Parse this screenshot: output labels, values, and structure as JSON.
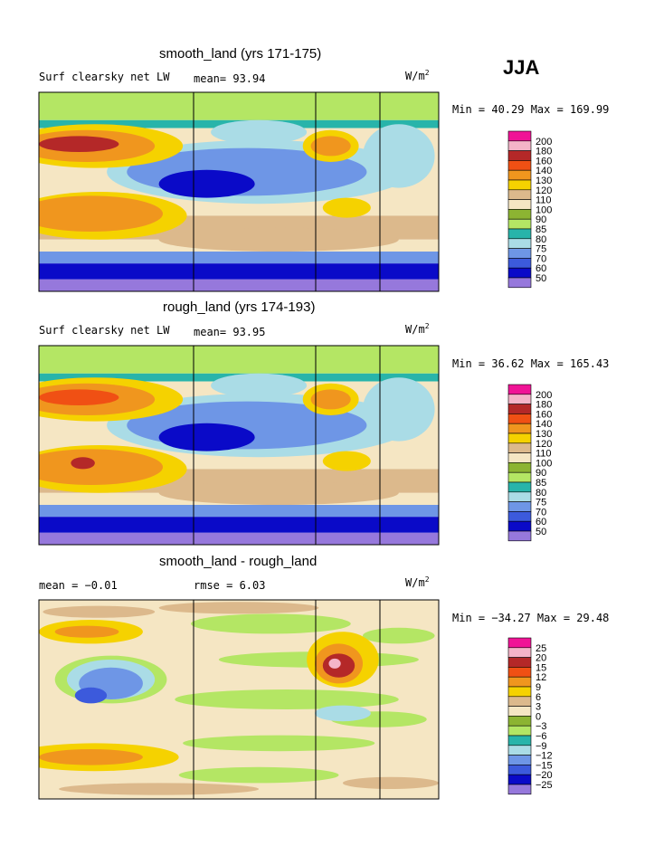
{
  "season": "JJA",
  "chart_data": [
    {
      "type": "heatmap",
      "title": "smooth_land (yrs 171-175)",
      "left_label": "Surf clearsky net LW",
      "mid_label": "mean=  93.94",
      "unit": "W/m",
      "unit_exp": "2",
      "range_text": "Min =  40.29 Max = 169.99",
      "min": 40.29,
      "max": 169.99,
      "mean": 93.94,
      "colorbar_levels": [
        "200",
        "180",
        "160",
        "140",
        "130",
        "120",
        "110",
        "100",
        "90",
        "85",
        "80",
        "75",
        "70",
        "60",
        "50"
      ]
    },
    {
      "type": "heatmap",
      "title": "rough_land (yrs 174-193)",
      "left_label": "Surf clearsky net LW",
      "mid_label": "mean=  93.95",
      "unit": "W/m",
      "unit_exp": "2",
      "range_text": "Min =  36.62 Max = 165.43",
      "min": 36.62,
      "max": 165.43,
      "mean": 93.95,
      "colorbar_levels": [
        "200",
        "180",
        "160",
        "140",
        "130",
        "120",
        "110",
        "100",
        "90",
        "85",
        "80",
        "75",
        "70",
        "60",
        "50"
      ]
    },
    {
      "type": "heatmap",
      "title": "smooth_land - rough_land",
      "left_label": "mean =  −0.01",
      "mid_label": "rmse =   6.03",
      "unit": "W/m",
      "unit_exp": "2",
      "range_text": "Min = −34.27 Max =  29.48",
      "min": -34.27,
      "max": 29.48,
      "mean": -0.01,
      "rmse": 6.03,
      "colorbar_levels": [
        "25",
        "20",
        "15",
        "12",
        "9",
        "6",
        "3",
        "0",
        "−3",
        "−6",
        "−9",
        "−12",
        "−15",
        "−20",
        "−25"
      ]
    }
  ],
  "colors": {
    "abs_scale": [
      "#f01496",
      "#f4b4c8",
      "#b42828",
      "#f05014",
      "#f0961e",
      "#f5d200",
      "#dcb98c",
      "#f5e6c3",
      "#8cb432",
      "#b4e664",
      "#28b4aa",
      "#aadce6",
      "#6e96e6",
      "#3c5adc",
      "#0a0ac8",
      "#9678dc"
    ],
    "diff_scale": [
      "#f01496",
      "#f4b4c8",
      "#b42828",
      "#f05014",
      "#f0961e",
      "#f5d200",
      "#dcb98c",
      "#f5e6c3",
      "#8cb432",
      "#b4e664",
      "#28b4aa",
      "#aadce6",
      "#6e96e6",
      "#3c5adc",
      "#0a0ac8",
      "#9678dc"
    ]
  }
}
